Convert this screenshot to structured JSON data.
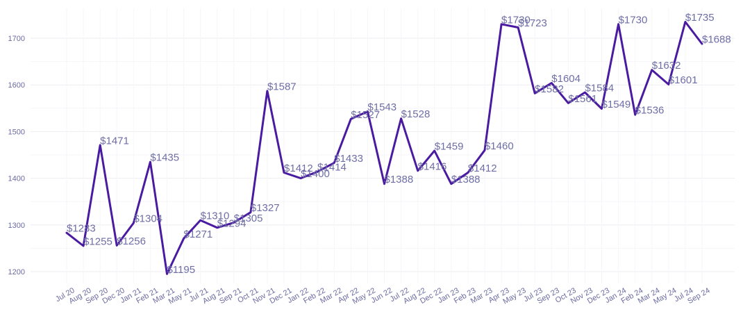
{
  "chart_data": {
    "type": "line",
    "title": "",
    "xlabel": "",
    "ylabel": "",
    "ylim": [
      1165,
      1765
    ],
    "yticks": [
      1200,
      1300,
      1400,
      1500,
      1600,
      1700
    ],
    "ytick_labels": [
      "1200",
      "1300",
      "1400",
      "1500",
      "1600",
      "1700"
    ],
    "grid": true,
    "line_color": "#4a1aa0",
    "categories": [
      "Jul 20",
      "Aug 20",
      "Sep 20",
      "Dec 20",
      "Jan 21",
      "Feb 21",
      "Mar 21",
      "May 21",
      "Jul 21",
      "Aug 21",
      "Sep 21",
      "Oct 21",
      "Nov 21",
      "Dec 21",
      "Jan 22",
      "Feb 22",
      "Mar 22",
      "Apr 22",
      "May 22",
      "Jun 22",
      "Jul 22",
      "Aug 22",
      "Dec 22",
      "Jan 23",
      "Feb 23",
      "Mar 23",
      "Apr 23",
      "May 23",
      "Jul 23",
      "Sep 23",
      "Oct 23",
      "Nov 23",
      "Dec 23",
      "Jan 24",
      "Feb 24",
      "Mar 24",
      "May 24",
      "Jul 24",
      "Sep 24"
    ],
    "values": [
      1283,
      1255,
      1471,
      1256,
      1304,
      1435,
      1195,
      1271,
      1310,
      1294,
      1305,
      1327,
      1587,
      1412,
      1400,
      1414,
      1433,
      1527,
      1543,
      1388,
      1528,
      1416,
      1459,
      1388,
      1412,
      1460,
      1730,
      1723,
      1582,
      1604,
      1561,
      1584,
      1549,
      1730,
      1536,
      1632,
      1601,
      1735,
      1688
    ],
    "data_labels": [
      "$1283",
      "$1255",
      "$1471",
      "$1256",
      "$1304",
      "$1435",
      "$1195",
      "$1271",
      "$1310",
      "$1294",
      "$1305",
      "$1327",
      "$1587",
      "$1412",
      "$1400",
      "$1414",
      "$1433",
      "$1527",
      "$1543",
      "$1388",
      "$1528",
      "$1416",
      "$1459",
      "$1388",
      "$1412",
      "$1460",
      "$1730",
      "$1723",
      "$1582",
      "$1604",
      "$1561",
      "$1584",
      "$1549",
      "$1730",
      "$1536",
      "$1632",
      "$1601",
      "$1735",
      "$1688"
    ]
  }
}
